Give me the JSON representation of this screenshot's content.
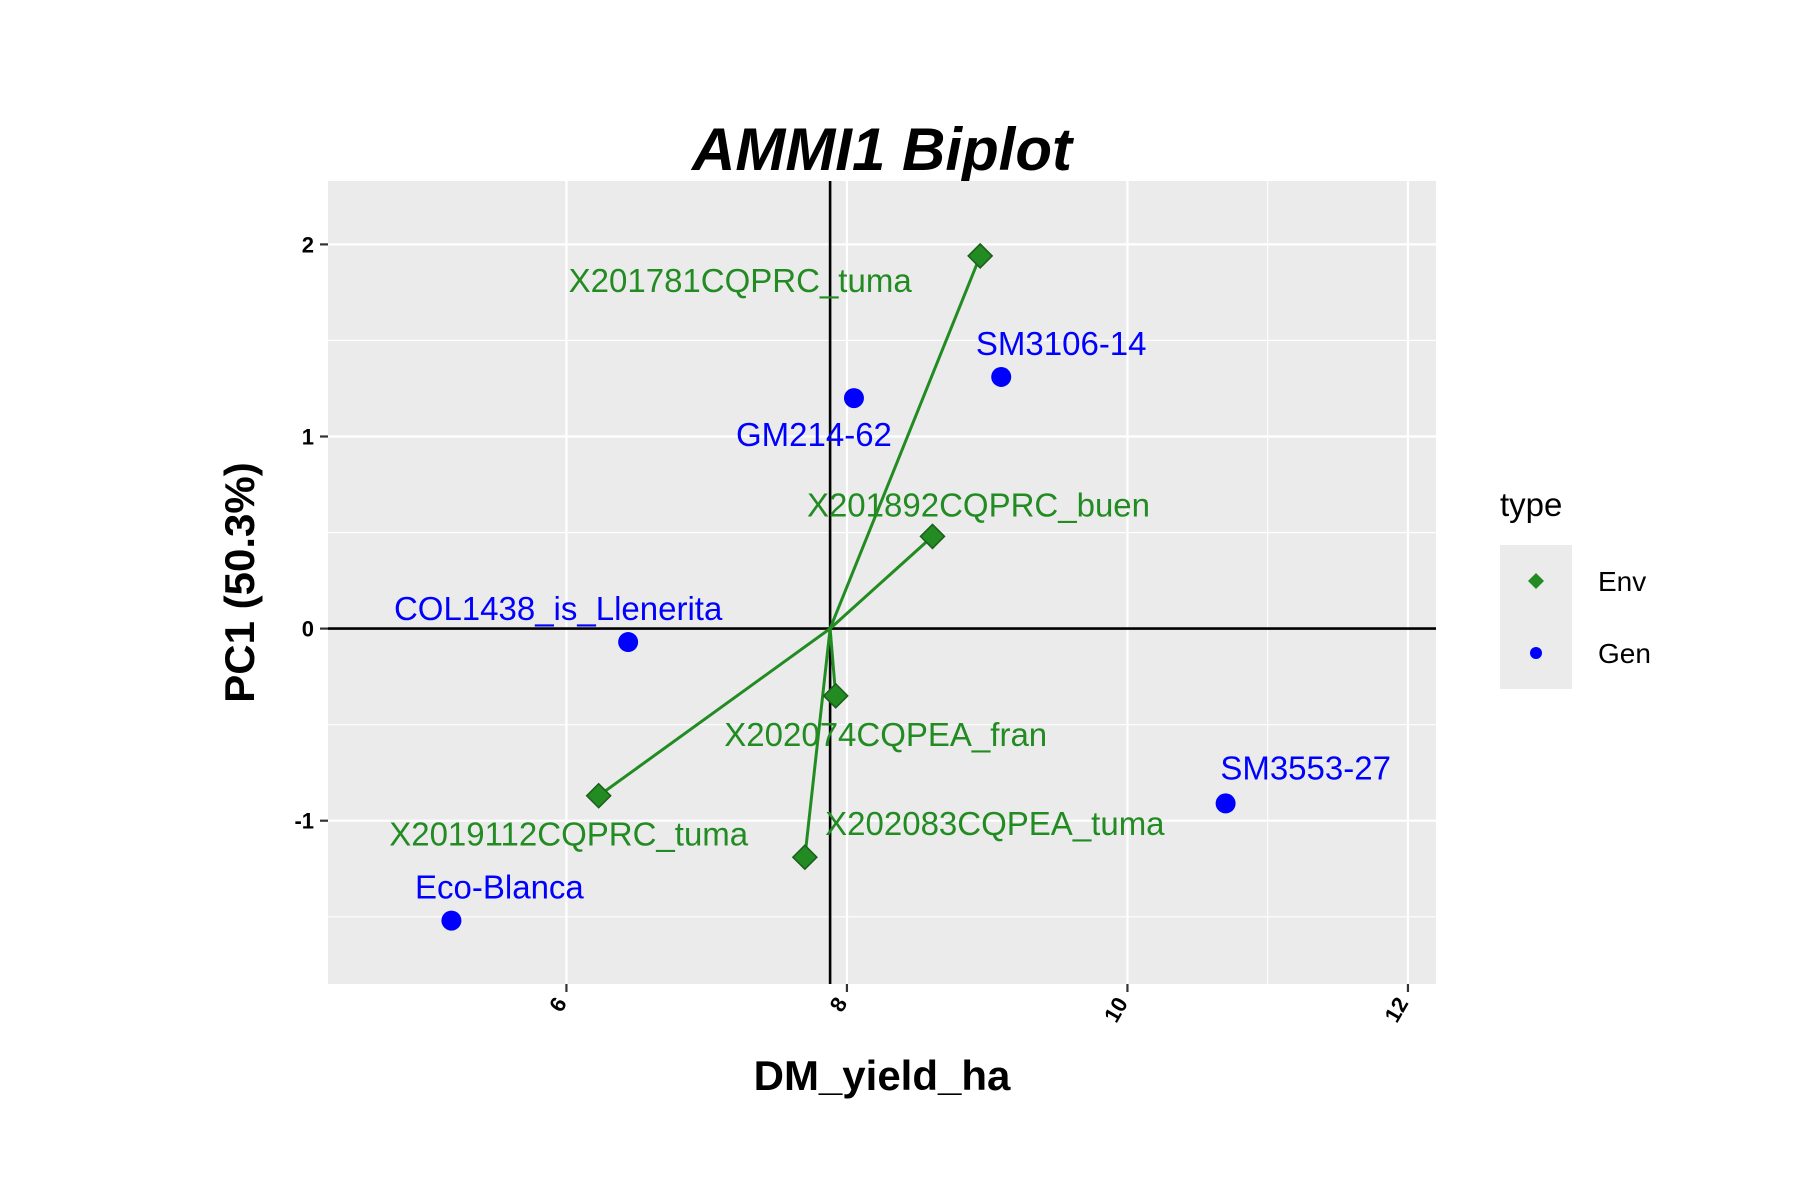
{
  "chart_data": {
    "type": "scatter",
    "title": "AMMI1 Biplot",
    "xlabel": "DM_yield_ha",
    "ylabel": "PC1 (50.3%)",
    "xlim": [
      4.3,
      12.2
    ],
    "ylim": [
      -1.85,
      2.33
    ],
    "x_ticks": [
      6,
      8,
      10,
      12
    ],
    "y_ticks": [
      -1,
      0,
      1,
      2
    ],
    "origin": [
      7.88,
      0
    ],
    "grid": true,
    "legend": {
      "title": "type",
      "position": "right",
      "items": [
        {
          "label": "Env",
          "color": "#228B22",
          "shape": "diamond"
        },
        {
          "label": "Gen",
          "color": "#0000FF",
          "shape": "circle"
        }
      ]
    },
    "colors": {
      "Env": "#228B22",
      "Gen": "#0000FF"
    },
    "env_points": [
      {
        "label": "X201781CQPRC_tuma",
        "x": 8.95,
        "y": 1.94
      },
      {
        "label": "X201892CQPRC_buen",
        "x": 8.61,
        "y": 0.48
      },
      {
        "label": "X202074CQPEA_fran",
        "x": 7.92,
        "y": -0.35
      },
      {
        "label": "X2019112CQPRC_tuma",
        "x": 6.23,
        "y": -0.87
      },
      {
        "label": "X202083CQPEA_tuma",
        "x": 7.7,
        "y": -1.19
      }
    ],
    "gen_points": [
      {
        "label": "SM3106-14",
        "x": 9.1,
        "y": 1.31
      },
      {
        "label": "GM214-62",
        "x": 8.05,
        "y": 1.2
      },
      {
        "label": "COL1438_is_Llenerita",
        "x": 6.44,
        "y": -0.07
      },
      {
        "label": "SM3553-27",
        "x": 10.7,
        "y": -0.91
      },
      {
        "label": "Eco-Blanca",
        "x": 5.18,
        "y": -1.52
      }
    ]
  }
}
